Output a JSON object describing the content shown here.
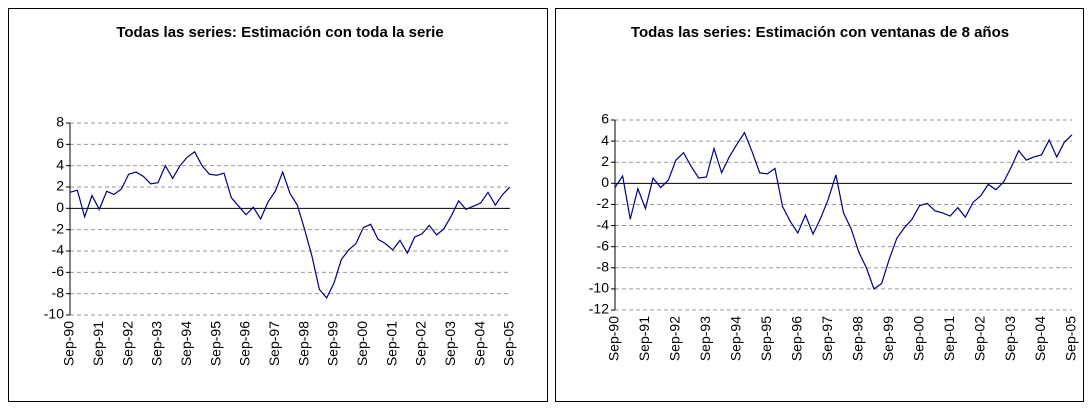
{
  "chart_data": [
    {
      "type": "line",
      "title": "Todas las series: Estimación con toda la serie",
      "categories": [
        "Sep-90",
        null,
        null,
        null,
        "Sep-91",
        null,
        null,
        null,
        "Sep-92",
        null,
        null,
        null,
        "Sep-93",
        null,
        null,
        null,
        "Sep-94",
        null,
        null,
        null,
        "Sep-95",
        null,
        null,
        null,
        "Sep-96",
        null,
        null,
        null,
        "Sep-97",
        null,
        null,
        null,
        "Sep-98",
        null,
        null,
        null,
        "Sep-99",
        null,
        null,
        null,
        "Sep-00",
        null,
        null,
        null,
        "Sep-01",
        null,
        null,
        null,
        "Sep-02",
        null,
        null,
        null,
        "Sep-03",
        null,
        null,
        null,
        "Sep-04",
        null,
        null,
        null,
        "Sep-05"
      ],
      "values": [
        1.5,
        1.7,
        -0.8,
        1.2,
        -0.1,
        1.6,
        1.3,
        1.8,
        3.2,
        3.4,
        3.0,
        2.3,
        2.4,
        4.0,
        2.8,
        4.0,
        4.8,
        5.3,
        4.0,
        3.2,
        3.1,
        3.3,
        1.0,
        0.2,
        -0.6,
        0.1,
        -1.0,
        0.6,
        1.6,
        3.4,
        1.4,
        0.3,
        -2.0,
        -4.5,
        -7.6,
        -8.4,
        -7.0,
        -4.8,
        -3.9,
        -3.3,
        -1.8,
        -1.5,
        -2.9,
        -3.3,
        -3.9,
        -3.0,
        -4.2,
        -2.7,
        -2.4,
        -1.6,
        -2.5,
        -1.9,
        -0.7,
        0.7,
        -0.1,
        0.2,
        0.5,
        1.5,
        0.3,
        1.3,
        2.0
      ],
      "color": "#000080",
      "ylim": [
        -10,
        8
      ],
      "yticks": [
        -10,
        -8,
        -6,
        -4,
        -2,
        0,
        2,
        4,
        6,
        8
      ],
      "grid": true
    },
    {
      "type": "line",
      "title": "Todas las series: Estimación con ventanas de 8 años",
      "categories": [
        "Sep-90",
        null,
        null,
        null,
        "Sep-91",
        null,
        null,
        null,
        "Sep-92",
        null,
        null,
        null,
        "Sep-93",
        null,
        null,
        null,
        "Sep-94",
        null,
        null,
        null,
        "Sep-95",
        null,
        null,
        null,
        "Sep-96",
        null,
        null,
        null,
        "Sep-97",
        null,
        null,
        null,
        "Sep-98",
        null,
        null,
        null,
        "Sep-99",
        null,
        null,
        null,
        "Sep-00",
        null,
        null,
        null,
        "Sep-01",
        null,
        null,
        null,
        "Sep-02",
        null,
        null,
        null,
        "Sep-03",
        null,
        null,
        null,
        "Sep-04",
        null,
        null,
        null,
        "Sep-05"
      ],
      "values": [
        -0.4,
        0.7,
        -3.4,
        -0.5,
        -2.4,
        0.5,
        -0.4,
        0.3,
        2.2,
        2.9,
        1.6,
        0.5,
        0.6,
        3.3,
        1.0,
        2.5,
        3.7,
        4.8,
        3.0,
        1.0,
        0.9,
        1.4,
        -2.2,
        -3.6,
        -4.7,
        -3.0,
        -4.8,
        -3.3,
        -1.5,
        0.8,
        -2.8,
        -4.3,
        -6.5,
        -8.0,
        -10.0,
        -9.5,
        -7.2,
        -5.2,
        -4.2,
        -3.4,
        -2.1,
        -1.9,
        -2.6,
        -2.8,
        -3.1,
        -2.3,
        -3.2,
        -1.8,
        -1.2,
        -0.1,
        -0.6,
        0.1,
        1.5,
        3.1,
        2.2,
        2.5,
        2.7,
        4.1,
        2.5,
        3.9,
        4.6
      ],
      "color": "#000080",
      "ylim": [
        -12,
        6
      ],
      "yticks": [
        -12,
        -10,
        -8,
        -6,
        -4,
        -2,
        0,
        2,
        4,
        6
      ],
      "grid": true
    }
  ]
}
